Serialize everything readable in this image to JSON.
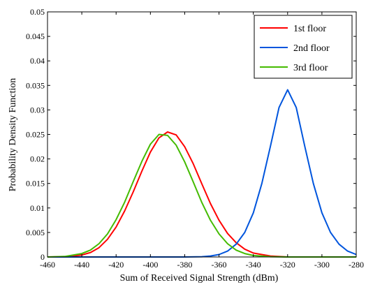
{
  "chart_data": {
    "type": "line",
    "title": "",
    "xlabel": "Sum of Received Signal Strength (dBm)",
    "ylabel": "Probability Density Function",
    "xlim": [
      -460,
      -280
    ],
    "ylim": [
      0,
      0.05
    ],
    "xticks": [
      -460,
      -440,
      -420,
      -400,
      -380,
      -360,
      -340,
      -320,
      -300,
      -280
    ],
    "xtick_labels": [
      "-460",
      "-440",
      "-420",
      "-400",
      "-380",
      "-360",
      "-340",
      "-320",
      "-300",
      "-280"
    ],
    "yticks": [
      0,
      0.005,
      0.01,
      0.015,
      0.02,
      0.025,
      0.03,
      0.035,
      0.04,
      0.045,
      0.05
    ],
    "ytick_labels": [
      "0",
      "0.005",
      "0.01",
      "0.015",
      "0.02",
      "0.025",
      "0.03",
      "0.035",
      "0.04",
      "0.045",
      "0.05"
    ],
    "grid": false,
    "legend_position": "top-right",
    "series": [
      {
        "name": "1st floor",
        "color": "#ff0000",
        "x": [
          -460,
          -450,
          -440,
          -435,
          -430,
          -425,
          -420,
          -415,
          -410,
          -405,
          -400,
          -395,
          -390,
          -385,
          -380,
          -375,
          -370,
          -365,
          -360,
          -355,
          -350,
          -345,
          -340,
          -330,
          -320,
          -300,
          -280
        ],
        "y": [
          0.0,
          5e-05,
          0.0004,
          0.0009,
          0.0019,
          0.0036,
          0.0061,
          0.0094,
          0.0133,
          0.0175,
          0.0214,
          0.0243,
          0.0255,
          0.0249,
          0.0225,
          0.019,
          0.0149,
          0.0109,
          0.0075,
          0.0048,
          0.0029,
          0.0016,
          0.0008,
          0.0002,
          0.0,
          0.0,
          0.0
        ]
      },
      {
        "name": "2nd floor",
        "color": "#0055dd",
        "x": [
          -460,
          -400,
          -380,
          -370,
          -365,
          -360,
          -355,
          -350,
          -345,
          -340,
          -335,
          -330,
          -325,
          -320,
          -315,
          -310,
          -305,
          -300,
          -295,
          -290,
          -285,
          -280
        ],
        "y": [
          0.0,
          0.0,
          0.0,
          5e-05,
          0.0002,
          0.0005,
          0.0012,
          0.0026,
          0.005,
          0.009,
          0.015,
          0.0226,
          0.0305,
          0.0341,
          0.0305,
          0.0226,
          0.015,
          0.009,
          0.005,
          0.0026,
          0.0012,
          0.0005
        ]
      },
      {
        "name": "3rd floor",
        "color": "#44bb00",
        "x": [
          -460,
          -450,
          -440,
          -435,
          -430,
          -425,
          -420,
          -415,
          -410,
          -405,
          -400,
          -395,
          -390,
          -385,
          -380,
          -375,
          -370,
          -365,
          -360,
          -355,
          -350,
          -345,
          -340,
          -330,
          -320,
          -300,
          -280
        ],
        "y": [
          0.0,
          0.0001,
          0.0007,
          0.0014,
          0.0027,
          0.0047,
          0.0076,
          0.0112,
          0.0154,
          0.0195,
          0.023,
          0.025,
          0.0248,
          0.0228,
          0.0194,
          0.0153,
          0.0111,
          0.0075,
          0.0047,
          0.0027,
          0.0014,
          0.0007,
          0.0003,
          5e-05,
          0.0,
          0.0,
          0.0
        ]
      }
    ]
  }
}
